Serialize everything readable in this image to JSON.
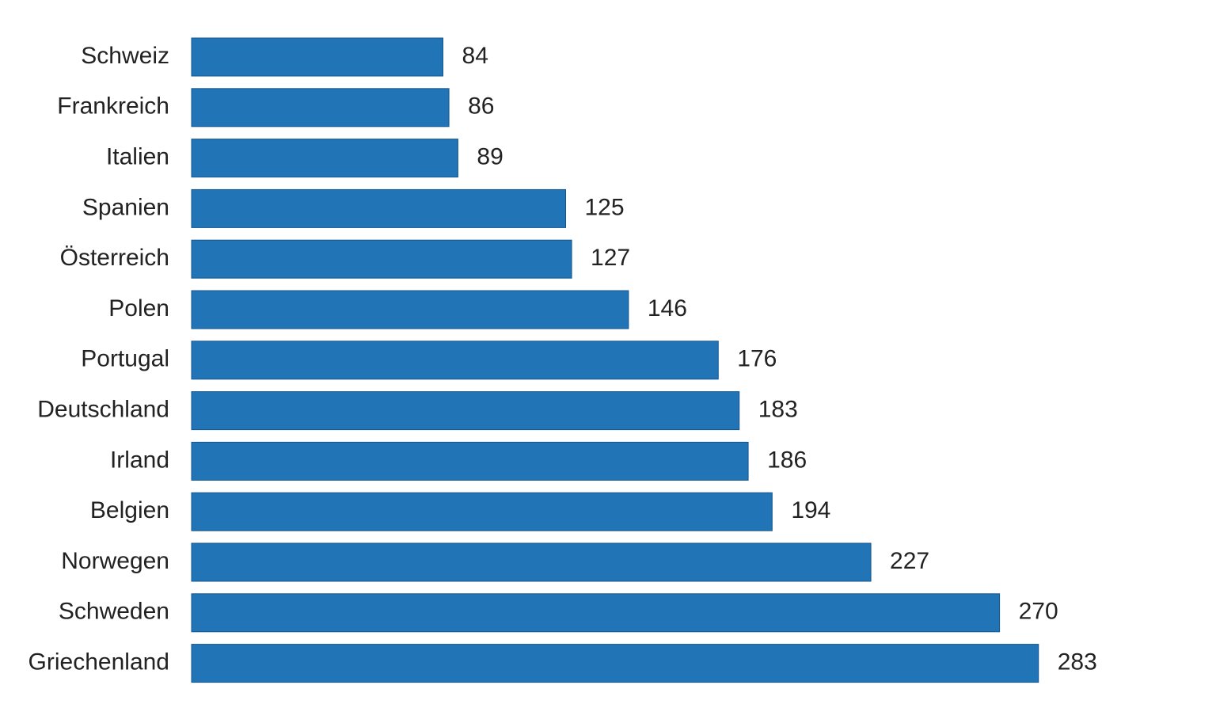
{
  "chart_data": {
    "type": "bar",
    "orientation": "horizontal",
    "categories": [
      "Schweiz",
      "Frankreich",
      "Italien",
      "Spanien",
      "Österreich",
      "Polen",
      "Portugal",
      "Deutschland",
      "Irland",
      "Belgien",
      "Norwegen",
      "Schweden",
      "Griechenland"
    ],
    "values": [
      84,
      86,
      89,
      125,
      127,
      146,
      176,
      183,
      186,
      194,
      227,
      270,
      283
    ],
    "value_labels": [
      "84",
      "86",
      "89",
      "125",
      "127",
      "146",
      "176",
      "183",
      "186",
      "194",
      "227",
      "270",
      "283"
    ],
    "xlim": [
      0,
      300
    ],
    "grid": false,
    "legend": "none",
    "colors": {
      "bar": "#2175b6",
      "bar_border": "#14558f",
      "text": "#222222"
    }
  }
}
